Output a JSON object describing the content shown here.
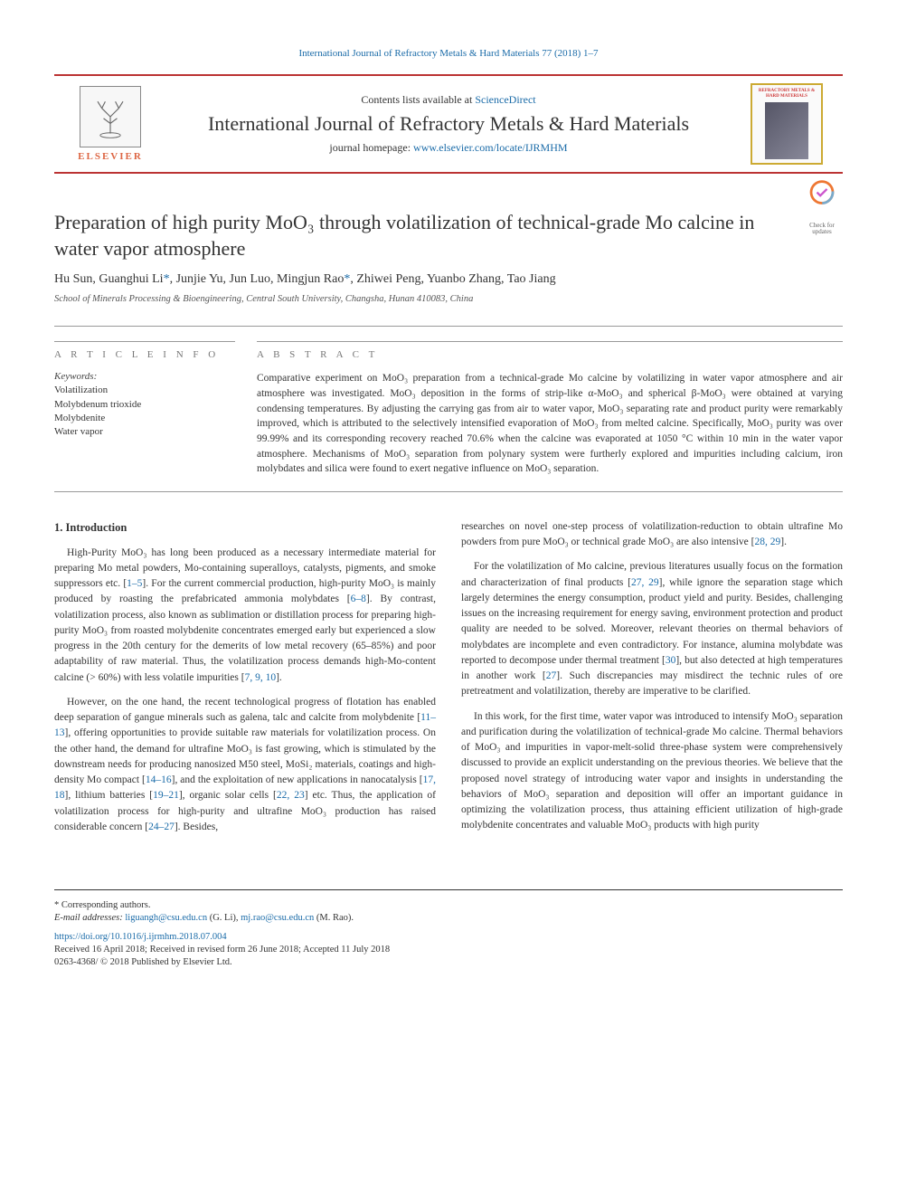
{
  "header": {
    "top_link_text": "International Journal of Refractory Metals & Hard Materials 77 (2018) 1–7",
    "contents_prefix": "Contents lists available at ",
    "contents_link": "ScienceDirect",
    "journal_title": "International Journal of Refractory Metals & Hard Materials",
    "homepage_prefix": "journal homepage: ",
    "homepage_link": "www.elsevier.com/locate/IJRMHM",
    "elsevier_word": "ELSEVIER",
    "cover_title": "REFRACTORY METALS & HARD MATERIALS"
  },
  "update_badge": {
    "line1": "Check for",
    "line2": "updates"
  },
  "article": {
    "title": "Preparation of high purity MoO₃ through volatilization of technical-grade Mo calcine in water vapor atmosphere",
    "authors_html": "Hu Sun, Guanghui Li*, Junjie Yu, Jun Luo, Mingjun Rao*, Zhiwei Peng, Yuanbo Zhang, Tao Jiang",
    "affiliation": "School of Minerals Processing & Bioengineering, Central South University, Changsha, Hunan 410083, China"
  },
  "info": {
    "label": "A R T I C L E  I N F O",
    "keywords_label": "Keywords:",
    "keywords": [
      "Volatilization",
      "Molybdenum trioxide",
      "Molybdenite",
      "Water vapor"
    ]
  },
  "abstract": {
    "label": "A B S T R A C T",
    "text": "Comparative experiment on MoO₃ preparation from a technical-grade Mo calcine by volatilizing in water vapor atmosphere and air atmosphere was investigated. MoO₃ deposition in the forms of strip-like α-MoO₃ and spherical β-MoO₃ were obtained at varying condensing temperatures. By adjusting the carrying gas from air to water vapor, MoO₃ separating rate and product purity were remarkably improved, which is attributed to the selectively intensified evaporation of MoO₃ from melted calcine. Specifically, MoO₃ purity was over 99.99% and its corresponding recovery reached 70.6% when the calcine was evaporated at 1050 °C within 10 min in the water vapor atmosphere. Mechanisms of MoO₃ separation from polynary system were furtherly explored and impurities including calcium, iron molybdates and silica were found to exert negative influence on MoO₃ separation."
  },
  "body": {
    "intro_title": "1. Introduction",
    "p1": "High-Purity MoO₃ has long been produced as a necessary intermediate material for preparing Mo metal powders, Mo-containing superalloys, catalysts, pigments, and smoke suppressors etc. [1–5]. For the current commercial production, high-purity MoO₃ is mainly produced by roasting the prefabricated ammonia molybdates [6–8]. By contrast, volatilization process, also known as sublimation or distillation process for preparing high-purity MoO₃ from roasted molybdenite concentrates emerged early but experienced a slow progress in the 20th century for the demerits of low metal recovery (65–85%) and poor adaptability of raw material. Thus, the volatilization process demands high-Mo-content calcine (> 60%) with less volatile impurities [7, 9, 10].",
    "p2": "However, on the one hand, the recent technological progress of flotation has enabled deep separation of gangue minerals such as galena, talc and calcite from molybdenite [11–13], offering opportunities to provide suitable raw materials for volatilization process. On the other hand, the demand for ultrafine MoO₃ is fast growing, which is stimulated by the downstream needs for producing nanosized M50 steel, MoSi₂ materials, coatings and high-density Mo compact [14–16], and the exploitation of new applications in nanocatalysis [17, 18], lithium batteries [19–21], organic solar cells [22, 23] etc. Thus, the application of volatilization process for high-purity and ultrafine MoO₃ production has raised considerable concern [24–27]. Besides,",
    "p3": "researches on novel one-step process of volatilization-reduction to obtain ultrafine Mo powders from pure MoO₃ or technical grade MoO₃ are also intensive [28, 29].",
    "p4": "For the volatilization of Mo calcine, previous literatures usually focus on the formation and characterization of final products [27, 29], while ignore the separation stage which largely determines the energy consumption, product yield and purity. Besides, challenging issues on the increasing requirement for energy saving, environment protection and product quality are needed to be solved. Moreover, relevant theories on thermal behaviors of molybdates are incomplete and even contradictory. For instance, alumina molybdate was reported to decompose under thermal treatment [30], but also detected at high temperatures in another work [27]. Such discrepancies may misdirect the technic rules of ore pretreatment and volatilization, thereby are imperative to be clarified.",
    "p5": "In this work, for the first time, water vapor was introduced to intensify MoO₃ separation and purification during the volatilization of technical-grade Mo calcine. Thermal behaviors of MoO₃ and impurities in vapor-melt-solid three-phase system were comprehensively discussed to provide an explicit understanding on the previous theories. We believe that the proposed novel strategy of introducing water vapor and insights in understanding the behaviors of MoO₃ separation and deposition will offer an important guidance in optimizing the volatilization process, thus attaining efficient utilization of high-grade molybdenite concentrates and valuable MoO₃ products with high purity"
  },
  "footer": {
    "corr_label": "* Corresponding authors.",
    "email_label": "E-mail addresses: ",
    "email1": "liguangh@csu.edu.cn",
    "email1_name": " (G. Li), ",
    "email2": "mj.rao@csu.edu.cn",
    "email2_name": " (M. Rao).",
    "doi": "https://doi.org/10.1016/j.ijrmhm.2018.07.004",
    "received": "Received 16 April 2018; Received in revised form 26 June 2018; Accepted 11 July 2018",
    "issn": "0263-4368/ © 2018 Published by Elsevier Ltd."
  },
  "citations": {
    "c1": "1–5",
    "c2": "6–8",
    "c3": "7",
    "c4": "9",
    "c5": "10",
    "c6": "11–13",
    "c7": "14–16",
    "c8": "17",
    "c9": "18",
    "c10": "19–21",
    "c11": "22",
    "c12": "23",
    "c13": "24–27",
    "c14": "28",
    "c15": "29",
    "c16": "27",
    "c17": "29",
    "c18": "30",
    "c19": "27"
  },
  "colors": {
    "link": "#1a6ba8",
    "rule": "#b33",
    "text": "#333333"
  }
}
